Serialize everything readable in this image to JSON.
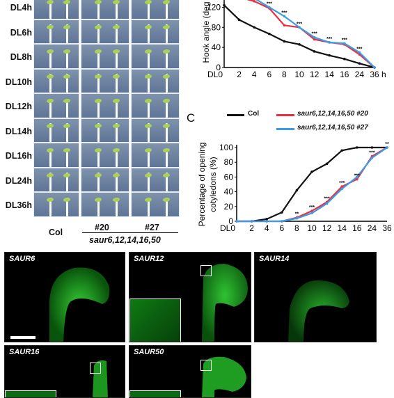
{
  "panel_a": {
    "row_labels": [
      "DL4h",
      "DL6h",
      "DL8h",
      "DL10h",
      "DL12h",
      "DL14h",
      "DL16h",
      "DL24h",
      "DL36h"
    ],
    "col_label_col": "Col",
    "col_label_20": "#20",
    "col_label_27": "#27",
    "genotype_label": "saur6,12,14,16,50"
  },
  "panel_c_letter": "C",
  "legend": {
    "col": "Col",
    "m20": "saur6,12,14,16,50 #20",
    "m27": "saur6,12,14,16,50 #27"
  },
  "colors": {
    "col": "#111111",
    "m20": "#e8313f",
    "m27": "#3a9be6"
  },
  "chart_data": [
    {
      "type": "line",
      "ylabel": "Hook angle (degree)",
      "ylabel_visible": "Hook angle (deg",
      "xlabel": "h",
      "x": [
        "DL0",
        "2",
        "4",
        "6",
        "8",
        "10",
        "12",
        "14",
        "16",
        "24",
        "36"
      ],
      "ylim": [
        0,
        140
      ],
      "yticks": [
        0,
        40,
        80,
        120
      ],
      "series": [
        {
          "name": "Col",
          "values": [
            124,
            95,
            80,
            67,
            52,
            46,
            32,
            24,
            17,
            8,
            0
          ]
        },
        {
          "name": "saur6,12,14,16,50 #20",
          "values": [
            150,
            140,
            132,
            118,
            84,
            80,
            56,
            50,
            46,
            26,
            0
          ]
        },
        {
          "name": "saur6,12,14,16,50 #27",
          "values": [
            150,
            144,
            138,
            120,
            102,
            80,
            60,
            50,
            48,
            30,
            0
          ]
        }
      ],
      "annotations": [
        "***",
        "***",
        "***",
        "***",
        "***",
        "***",
        "***",
        "***"
      ]
    },
    {
      "type": "line",
      "ylabel": "Percentage of opening cotyledons (%)",
      "xlabel": "h",
      "x": [
        "DL0",
        "2",
        "4",
        "6",
        "8",
        "10",
        "12",
        "14",
        "16",
        "24",
        "36"
      ],
      "ylim": [
        0,
        100
      ],
      "yticks": [
        0,
        20,
        40,
        60,
        80,
        100
      ],
      "series": [
        {
          "name": "Col",
          "values": [
            0,
            0,
            3,
            12,
            42,
            67,
            78,
            96,
            100,
            100,
            100
          ]
        },
        {
          "name": "saur6,12,14,16,50 #20",
          "values": [
            0,
            0,
            0,
            0,
            5,
            14,
            26,
            47,
            57,
            88,
            100
          ]
        },
        {
          "name": "saur6,12,14,16,50 #27",
          "values": [
            0,
            0,
            0,
            0,
            4,
            11,
            24,
            44,
            60,
            86,
            100
          ]
        }
      ],
      "annotations": [
        "**",
        "***",
        "***",
        "***",
        "***",
        "***",
        "**"
      ]
    }
  ],
  "micrographs": {
    "saur6": "SAUR6",
    "saur12": "SAUR12",
    "saur14": "SAUR14",
    "saur16": "SAUR16",
    "saur50": "SAUR50"
  }
}
